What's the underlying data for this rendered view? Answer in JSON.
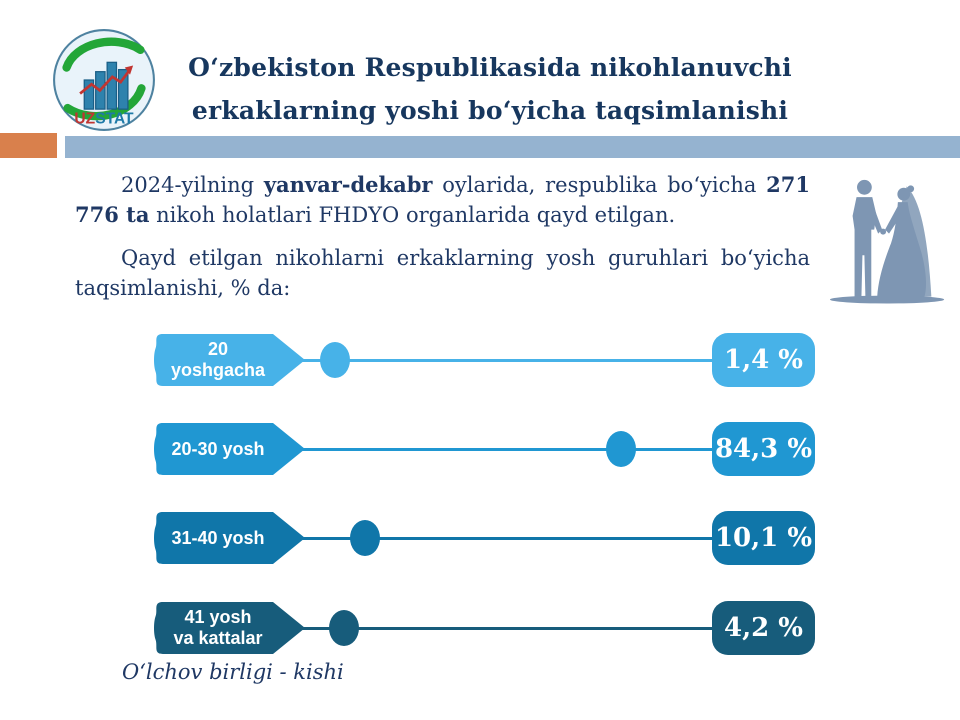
{
  "slide": {
    "title_line1": "O‘zbekiston Respublikasida nikohlanuvchi",
    "title_line2": "erkaklarning yoshi bo‘yicha taqsimlanishi",
    "footer_note": "O‘lchov birligi - kishi"
  },
  "logo": {
    "uz": "UZ",
    "stat": "STAT"
  },
  "intro": {
    "p1_segments": [
      {
        "text": "2024-yilning ",
        "bold": false
      },
      {
        "text": "yanvar-dekabr",
        "bold": true
      },
      {
        "text": " oylarida, respublika bo‘yicha ",
        "bold": false
      },
      {
        "text": "271 776 ta",
        "bold": true
      },
      {
        "text": " nikoh holatlari FHDYO organlarida qayd etilgan.",
        "bold": false
      }
    ],
    "p2": "Qayd etilgan nikohlarni erkaklarning yosh guruhlari bo‘yicha taqsimlanishi, % da:"
  },
  "chart_data": {
    "type": "bar",
    "orientation": "horizontal",
    "title": "Qayd etilgan nikohlarni erkaklarning yosh guruhlari bo‘yicha taqsimlanishi, % da",
    "categories": [
      "20 yoshgacha",
      "20-30 yosh",
      "31-40 yosh",
      "41 yosh va kattalar"
    ],
    "values": [
      1.4,
      84.3,
      10.1,
      4.2
    ],
    "value_labels": [
      "1,4 %",
      "84,3 %",
      "10,1 %",
      "4,2 %"
    ],
    "label_lines": [
      [
        "20",
        "yoshgacha"
      ],
      [
        "20-30 yosh"
      ],
      [
        "31-40 yosh"
      ],
      [
        "41 yosh",
        "va kattalar"
      ]
    ],
    "colors": [
      "#47B2E8",
      "#2097D2",
      "#1076A9",
      "#175C7B"
    ],
    "xlim": [
      0,
      100
    ],
    "legend": false,
    "grid": false,
    "measure_unit_note": "O‘lchov birligi - kishi"
  },
  "colors": {
    "title_text": "#17375E",
    "body_text": "#1F3864",
    "accent_orange": "#D9804C",
    "band_blue": "#95B3D0",
    "couple_icon": "#7E96B3",
    "logo_green": "#23A638",
    "logo_red": "#C13531",
    "logo_bar_blue": "#2E82AD"
  }
}
